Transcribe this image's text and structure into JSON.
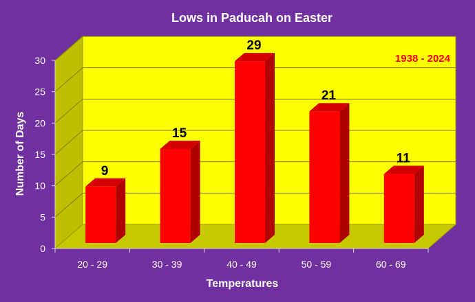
{
  "chart_data": {
    "type": "bar",
    "title": "Lows in Paducah on Easter",
    "annotation": "1938 - 2024",
    "xlabel": "Temperatures",
    "ylabel": "Number of Days",
    "categories": [
      "20 - 29",
      "30 - 39",
      "40 - 49",
      "50 - 59",
      "60 - 69"
    ],
    "values": [
      9,
      15,
      29,
      21,
      11
    ],
    "data_labels": [
      "9",
      "15",
      "29",
      "21",
      "11"
    ],
    "yticks": [
      "0",
      "5",
      "10",
      "15",
      "20",
      "25",
      "30"
    ],
    "ylim": [
      0,
      30
    ],
    "grid": true,
    "legend": "none",
    "colors": {
      "background": "#7030a0",
      "plot_wall": "#ffff00",
      "side_wall": "#bfbf00",
      "floor": "#c8c800",
      "bar_front": "#ff0000",
      "bar_side": "#b00000",
      "bar_top": "#d40000",
      "gridline": "#7f7f00",
      "annotation": "#ff0000",
      "text": "#ffffff"
    }
  }
}
